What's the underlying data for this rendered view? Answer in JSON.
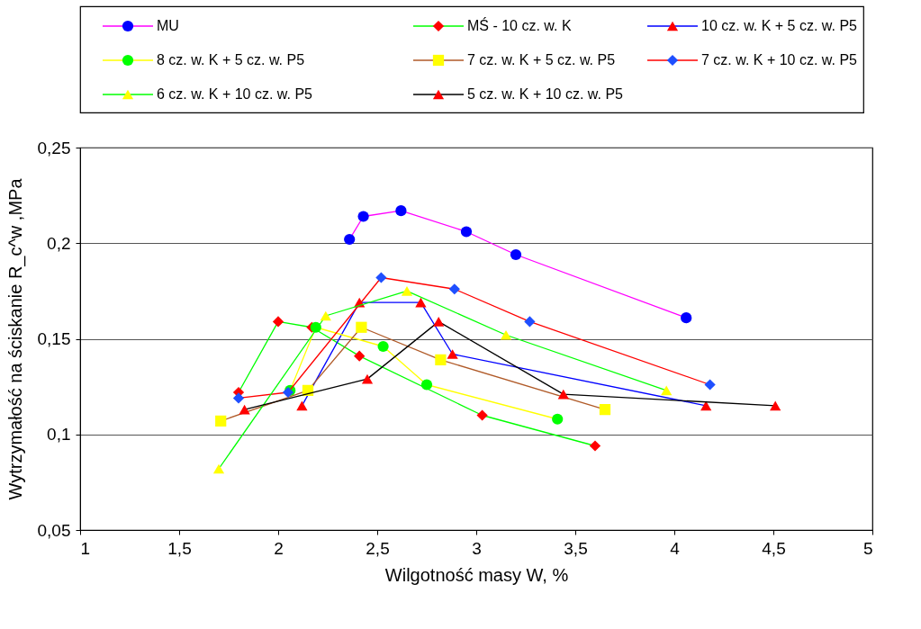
{
  "chart_data": {
    "type": "line",
    "xlabel": "Wilgotność masy W, %",
    "ylabel": "Wytrzymałość na ściskanie R_c^w ,MPa",
    "xlim": [
      1,
      5
    ],
    "ylim": [
      0.05,
      0.25
    ],
    "xticks": [
      1,
      {
        "value": 1.5,
        "label": "1,5"
      },
      2,
      {
        "value": 2.5,
        "label": "2,5"
      },
      3,
      {
        "value": 3.5,
        "label": "3,5"
      },
      4,
      {
        "value": 4.5,
        "label": "4,5"
      },
      5
    ],
    "yticks": [
      {
        "value": 0.05,
        "label": "0,05"
      },
      {
        "value": 0.1,
        "label": "0,1"
      },
      {
        "value": 0.15,
        "label": "0,15"
      },
      {
        "value": 0.2,
        "label": "0,2"
      },
      {
        "value": 0.25,
        "label": "0,25"
      }
    ],
    "grid": "y",
    "legend": "top",
    "line_style": "solid",
    "series": [
      {
        "name": "MU",
        "color": "#ff00ff",
        "marker": "circle",
        "colors": [
          "#0000ff",
          "#0000ff",
          "#0000ff",
          "#0000ff",
          "#0000ff",
          "#0000ff"
        ],
        "x": [
          2.36,
          2.43,
          2.62,
          2.95,
          3.2,
          4.06
        ],
        "values": [
          0.202,
          0.214,
          0.217,
          0.206,
          0.194,
          0.161
        ]
      },
      {
        "name": "MŚ - 10 cz. w. K",
        "color": "#00ff00",
        "marker": "diamond",
        "colors": [
          "#ff0000",
          "#ff0000",
          "#ff0000",
          "#ff0000",
          "#ff0000",
          "#ff0000"
        ],
        "x": [
          1.8,
          2.0,
          2.17,
          2.41,
          3.03,
          3.6
        ],
        "values": [
          0.122,
          0.159,
          0.156,
          0.141,
          0.11,
          0.094
        ]
      },
      {
        "name": "10 cz. w. K + 5 cz. w. P5",
        "color": "#0000ff",
        "marker": "triangle",
        "colors": [
          "#ff0000",
          "#ff0000",
          "#ff0000",
          "#ff0000",
          "#ff0000"
        ],
        "x": [
          2.12,
          2.41,
          2.72,
          2.88,
          4.16
        ],
        "values": [
          0.115,
          0.169,
          0.169,
          0.142,
          0.115
        ]
      },
      {
        "name": "8 cz. w. K + 5 cz. w. P5",
        "color": "#ffff00",
        "marker": "circle",
        "colors": [
          "#00ff00",
          "#00ff00",
          "#00ff00",
          "#00ff00",
          "#00ff00"
        ],
        "x": [
          2.06,
          2.19,
          2.53,
          2.75,
          3.41
        ],
        "values": [
          0.123,
          0.156,
          0.146,
          0.126,
          0.108
        ]
      },
      {
        "name": "7 cz. w. K + 5 cz. w. P5",
        "color": "#b05a28",
        "marker": "square",
        "colors": [
          "#ffff00",
          "#ffff00",
          "#ffff00",
          "#ffff00",
          "#ffff00"
        ],
        "x": [
          1.71,
          2.15,
          2.42,
          2.82,
          3.65
        ],
        "values": [
          0.107,
          0.123,
          0.156,
          0.139,
          0.113
        ]
      },
      {
        "name": "7 cz. w. K + 10 cz. w. P5",
        "color": "#ff0000",
        "marker": "diamond",
        "colors": [
          "#1f4fff",
          "#1f4fff",
          "#1f4fff",
          "#1f4fff",
          "#1f4fff",
          "#1f4fff"
        ],
        "x": [
          1.8,
          2.05,
          2.52,
          2.89,
          3.27,
          4.18
        ],
        "values": [
          0.119,
          0.122,
          0.182,
          0.176,
          0.159,
          0.126
        ]
      },
      {
        "name": "6 cz. w. K + 10 cz. w. P5",
        "color": "#00ff00",
        "marker": "triangle",
        "colors": [
          "#ffff00",
          "#ffff00",
          "#ffff00",
          "#ffff00",
          "#ffff00"
        ],
        "x": [
          1.7,
          2.24,
          2.65,
          3.15,
          3.96
        ],
        "values": [
          0.082,
          0.162,
          0.175,
          0.152,
          0.123
        ]
      },
      {
        "name": "5 cz. w. K + 10 cz. w. P5",
        "color": "#000000",
        "marker": "triangle",
        "colors": [
          "#ff0000",
          "#ff0000",
          "#ff0000",
          "#ff0000",
          "#ff0000"
        ],
        "x": [
          1.83,
          2.45,
          2.81,
          3.44,
          4.51
        ],
        "values": [
          0.113,
          0.129,
          0.159,
          0.121,
          0.115
        ]
      }
    ]
  }
}
